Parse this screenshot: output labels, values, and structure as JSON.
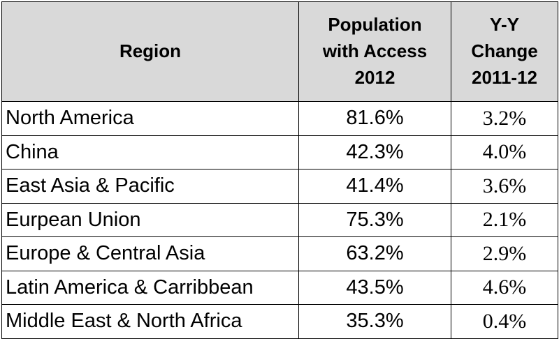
{
  "chart_data": {
    "type": "table",
    "columns": [
      {
        "lines": [
          "Region"
        ]
      },
      {
        "lines": [
          "Population",
          "with Access",
          "2012"
        ]
      },
      {
        "lines": [
          "Y-Y",
          "Change",
          "2011-12"
        ]
      }
    ],
    "rows": [
      {
        "region": "North America",
        "access_2012": "81.6%",
        "yy_change": "3.2%"
      },
      {
        "region": "China",
        "access_2012": "42.3%",
        "yy_change": "4.0%"
      },
      {
        "region": "East Asia & Pacific",
        "access_2012": "41.4%",
        "yy_change": "3.6%"
      },
      {
        "region": "Eurpean Union",
        "access_2012": "75.3%",
        "yy_change": "2.1%"
      },
      {
        "region": "Europe & Central Asia",
        "access_2012": "63.2%",
        "yy_change": "2.9%"
      },
      {
        "region": "Latin America & Carribbean",
        "access_2012": "43.5%",
        "yy_change": "4.6%"
      },
      {
        "region": "Middle East & North Africa",
        "access_2012": "35.3%",
        "yy_change": "0.4%"
      }
    ],
    "header_background": "#d9d9d9",
    "border_color": "#000000"
  }
}
